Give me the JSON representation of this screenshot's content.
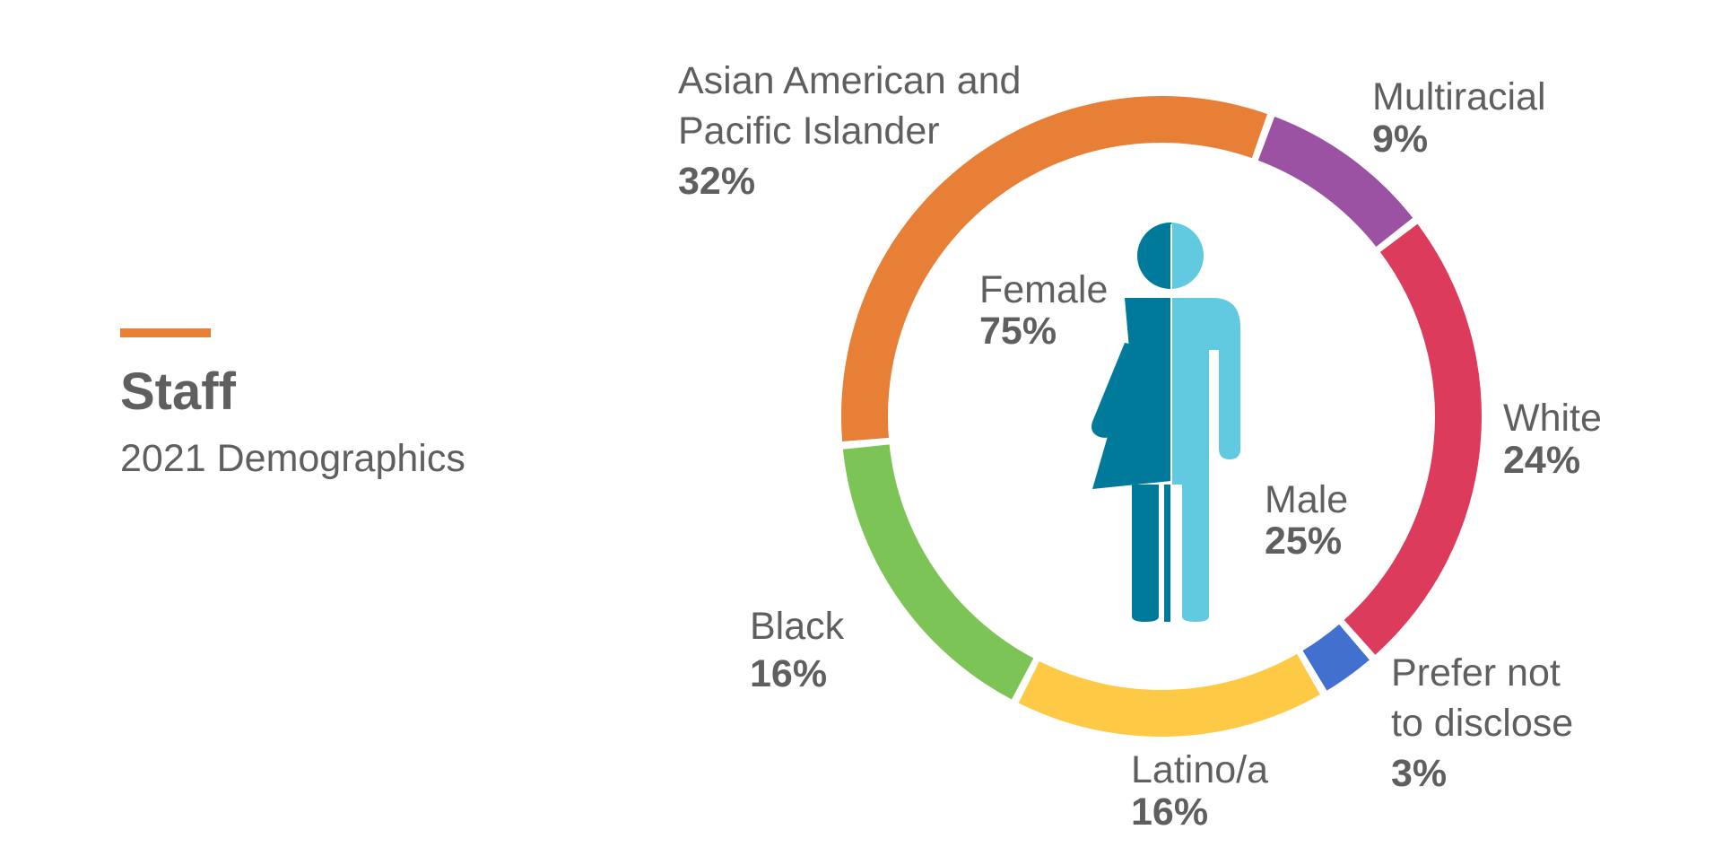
{
  "header": {
    "title": "Staff",
    "subtitle": "2021 Demographics",
    "accent_color": "#e87f36"
  },
  "chart_data": [
    {
      "type": "pie",
      "variant": "donut",
      "slices": [
        {
          "label_lines": [
            "Multiracial"
          ],
          "value": 9,
          "value_label": "9%",
          "color": "#9b52a3"
        },
        {
          "label_lines": [
            "White"
          ],
          "value": 24,
          "value_label": "24%",
          "color": "#dd3b5b"
        },
        {
          "label_lines": [
            "Prefer not",
            "to disclose"
          ],
          "value": 3,
          "value_label": "3%",
          "color": "#4170cf"
        },
        {
          "label_lines": [
            "Latino/a"
          ],
          "value": 16,
          "value_label": "16%",
          "color": "#fec944"
        },
        {
          "label_lines": [
            "Black"
          ],
          "value": 16,
          "value_label": "16%",
          "color": "#7dc456"
        },
        {
          "label_lines": [
            "Asian American and",
            "Pacific Islander"
          ],
          "value": 32,
          "value_label": "32%",
          "color": "#e87f36"
        }
      ]
    },
    {
      "type": "pie",
      "variant": "gender-figure",
      "slices": [
        {
          "label": "Female",
          "value": 75,
          "value_label": "75%",
          "color": "#007a9a"
        },
        {
          "label": "Male",
          "value": 25,
          "value_label": "25%",
          "color": "#62cae0"
        }
      ]
    }
  ]
}
